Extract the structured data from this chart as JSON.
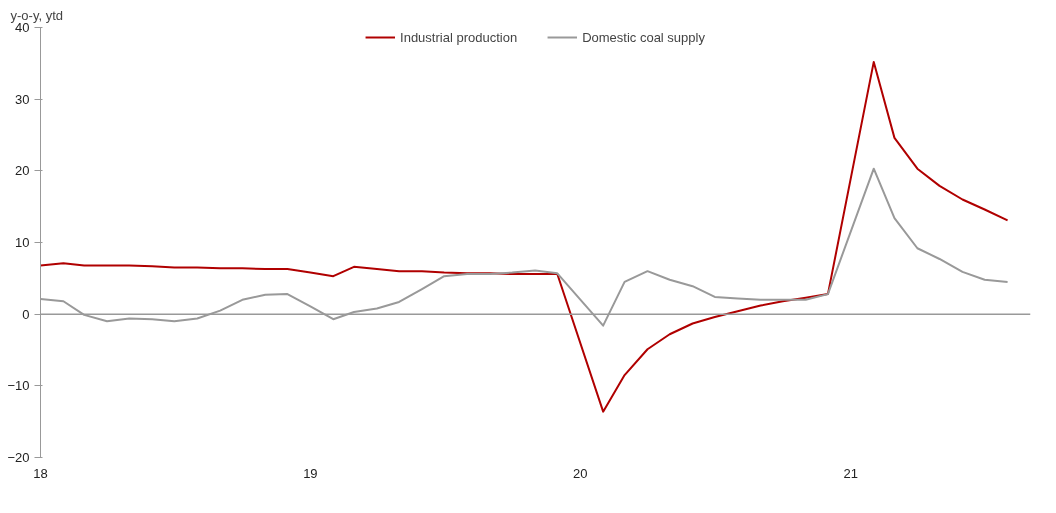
{
  "chart_data": {
    "type": "line",
    "ylabel": "y-o-y, ytd",
    "legend": "top",
    "marker": "none",
    "line_style": "solid",
    "xlim": [
      "2018-01",
      "2021-09"
    ],
    "xticks": [
      {
        "value": "2018-01",
        "label": "18"
      },
      {
        "value": "2019-01",
        "label": "19"
      },
      {
        "value": "2020-01",
        "label": "20"
      },
      {
        "value": "2021-01",
        "label": "21"
      }
    ],
    "ylim": [
      -20,
      40
    ],
    "yticks": [
      -20,
      -10,
      0,
      10,
      20,
      30,
      40
    ],
    "series": [
      {
        "name": "Industrial production",
        "color": "#b00000",
        "x": [
          "2018-01",
          "2018-02",
          "2018-03",
          "2018-04",
          "2018-05",
          "2018-06",
          "2018-07",
          "2018-08",
          "2018-09",
          "2018-10",
          "2018-11",
          "2018-12",
          "2019-01",
          "2019-02",
          "2019-03",
          "2019-04",
          "2019-05",
          "2019-06",
          "2019-07",
          "2019-08",
          "2019-09",
          "2019-10",
          "2019-11",
          "2019-12",
          "2020-02",
          "2020-03",
          "2020-04",
          "2020-05",
          "2020-06",
          "2020-07",
          "2020-08",
          "2020-09",
          "2020-10",
          "2020-11",
          "2020-12",
          "2021-02",
          "2021-03",
          "2021-04",
          "2021-05",
          "2021-06",
          "2021-07",
          "2021-08"
        ],
        "values": [
          6.8,
          7.1,
          6.8,
          6.8,
          6.8,
          6.7,
          6.5,
          6.5,
          6.4,
          6.4,
          6.3,
          6.3,
          5.8,
          5.3,
          6.6,
          6.3,
          6.0,
          6.0,
          5.8,
          5.7,
          5.7,
          5.6,
          5.6,
          5.6,
          -13.6,
          -8.5,
          -4.9,
          -2.8,
          -1.3,
          -0.4,
          0.4,
          1.2,
          1.8,
          2.3,
          2.8,
          35.2,
          24.6,
          20.3,
          17.9,
          16.0,
          14.6,
          13.1
        ]
      },
      {
        "name": "Domestic coal supply",
        "color": "#999999",
        "x": [
          "2018-01",
          "2018-02",
          "2018-03",
          "2018-04",
          "2018-05",
          "2018-06",
          "2018-07",
          "2018-08",
          "2018-09",
          "2018-10",
          "2018-11",
          "2018-12",
          "2019-01",
          "2019-02",
          "2019-03",
          "2019-04",
          "2019-05",
          "2019-06",
          "2019-07",
          "2019-08",
          "2019-09",
          "2019-10",
          "2019-11",
          "2019-12",
          "2020-02",
          "2020-03",
          "2020-04",
          "2020-05",
          "2020-06",
          "2020-07",
          "2020-08",
          "2020-09",
          "2020-10",
          "2020-11",
          "2020-12",
          "2021-02",
          "2021-03",
          "2021-04",
          "2021-05",
          "2021-06",
          "2021-07",
          "2021-08"
        ],
        "values": [
          2.1,
          1.8,
          -0.1,
          -1.0,
          -0.6,
          -0.7,
          -1.0,
          -0.6,
          0.5,
          2.0,
          2.7,
          2.8,
          1.1,
          -0.7,
          0.3,
          0.8,
          1.7,
          3.5,
          5.3,
          5.6,
          5.6,
          5.8,
          6.1,
          5.7,
          -1.6,
          4.5,
          6.0,
          4.8,
          3.9,
          2.4,
          2.2,
          2.0,
          2.0,
          2.0,
          2.8,
          20.3,
          13.4,
          9.2,
          7.7,
          5.9,
          4.8,
          4.5
        ]
      }
    ]
  }
}
